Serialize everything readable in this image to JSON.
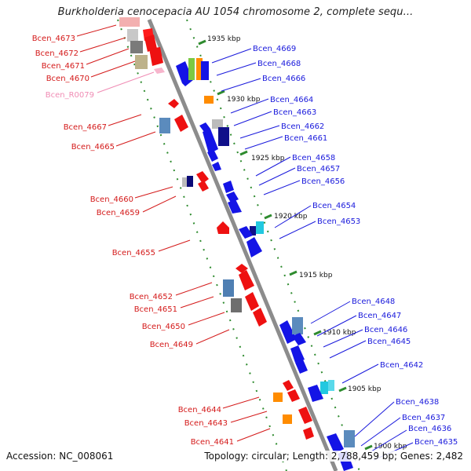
{
  "title": "Burkholderia cenocepacia AU 1054 chromosome 2, complete sequ...",
  "accession_text": "Accession: NC_008061",
  "summary_text": "Topology: circular; Length: 2,788,459 bp; Genes: 2,482",
  "colors": {
    "backbone": "#8c8c8c",
    "forward_label": "#1a1adc",
    "reverse_label": "#d41a1a",
    "rna_label": "#f08cb4",
    "tick": "#2e8b2e",
    "forward_gene": "#1414e6",
    "reverse_gene": "#ee1111"
  },
  "scale_labels": [
    "1935 kbp",
    "1930 kbp",
    "1925 kbp",
    "1920 kbp",
    "1915 kbp",
    "1910 kbp",
    "1905 kbp",
    "1900 kbp"
  ],
  "reverse_labels": [
    "Bcen_4673",
    "Bcen_4672",
    "Bcen_4671",
    "Bcen_4670",
    "Bcen_R0079",
    "Bcen_4667",
    "Bcen_4665",
    "Bcen_4660",
    "Bcen_4659",
    "Bcen_4655",
    "Bcen_4652",
    "Bcen_4651",
    "Bcen_4650",
    "Bcen_4649",
    "Bcen_4644",
    "Bcen_4643",
    "Bcen_4641"
  ],
  "forward_labels": [
    "Bcen_4669",
    "Bcen_4668",
    "Bcen_4666",
    "Bcen_4664",
    "Bcen_4663",
    "Bcen_4662",
    "Bcen_4661",
    "Bcen_4658",
    "Bcen_4657",
    "Bcen_4656",
    "Bcen_4654",
    "Bcen_4653",
    "Bcen_4648",
    "Bcen_4647",
    "Bcen_4646",
    "Bcen_4645",
    "Bcen_4642",
    "Bcen_4638",
    "Bcen_4637",
    "Bcen_4636",
    "Bcen_4635"
  ]
}
